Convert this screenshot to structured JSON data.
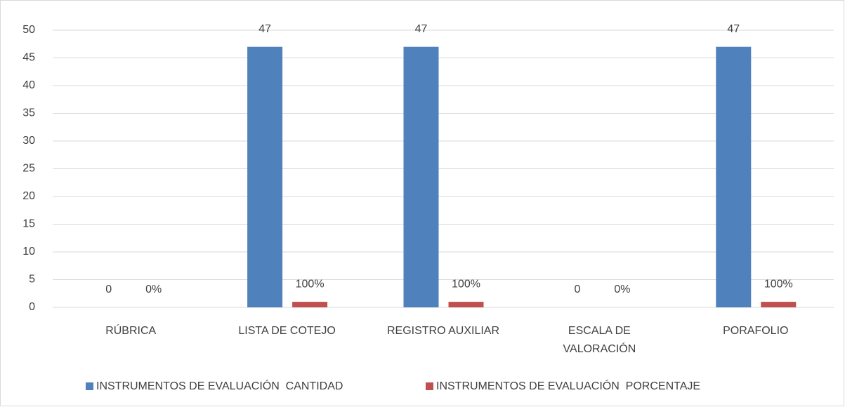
{
  "chart_data": {
    "type": "bar",
    "categories": [
      "RÚBRICA",
      "LISTA DE COTEJO",
      "REGISTRO AUXILIAR",
      "ESCALA DE VALORACIÓN",
      "PORAFOLIO"
    ],
    "series": [
      {
        "name": "INSTRUMENTOS DE EVALUACIÓN  CANTIDAD",
        "color": "#4f81bd",
        "values": [
          0,
          47,
          47,
          0,
          47
        ]
      },
      {
        "name": "INSTRUMENTOS DE EVALUACIÓN  PORCENTAJE",
        "color": "#c0504d",
        "values": [
          0,
          1,
          1,
          0,
          1
        ],
        "value_labels": [
          "0%",
          "100%",
          "100%",
          "0%",
          "100%"
        ]
      }
    ],
    "ylim": [
      0,
      50
    ],
    "yticks": [
      0,
      5,
      10,
      15,
      20,
      25,
      30,
      35,
      40,
      45,
      50
    ],
    "grid": true,
    "legend": "bottom"
  }
}
